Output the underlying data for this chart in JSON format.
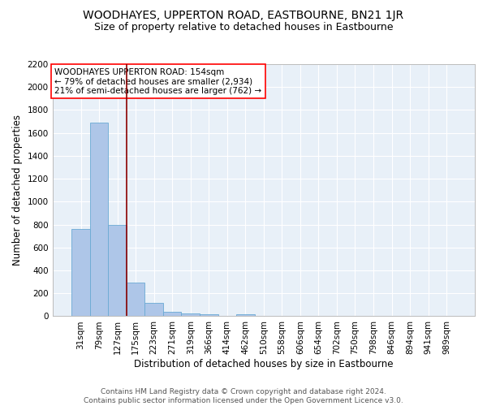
{
  "title": "WOODHAYES, UPPERTON ROAD, EASTBOURNE, BN21 1JR",
  "subtitle": "Size of property relative to detached houses in Eastbourne",
  "xlabel": "Distribution of detached houses by size in Eastbourne",
  "ylabel": "Number of detached properties",
  "footer_line1": "Contains HM Land Registry data © Crown copyright and database right 2024.",
  "footer_line2": "Contains public sector information licensed under the Open Government Licence v3.0.",
  "categories": [
    "31sqm",
    "79sqm",
    "127sqm",
    "175sqm",
    "223sqm",
    "271sqm",
    "319sqm",
    "366sqm",
    "414sqm",
    "462sqm",
    "510sqm",
    "558sqm",
    "606sqm",
    "654sqm",
    "702sqm",
    "750sqm",
    "798sqm",
    "846sqm",
    "894sqm",
    "941sqm",
    "989sqm"
  ],
  "values": [
    760,
    1690,
    800,
    295,
    120,
    42,
    22,
    20,
    0,
    20,
    0,
    0,
    0,
    0,
    0,
    0,
    0,
    0,
    0,
    0,
    0
  ],
  "bar_color": "#aec6e8",
  "bar_edge_color": "#6aaad4",
  "vline_x": 2.5,
  "vline_color": "#8b0000",
  "annotation_text": "WOODHAYES UPPERTON ROAD: 154sqm\n← 79% of detached houses are smaller (2,934)\n21% of semi-detached houses are larger (762) →",
  "annotation_box_color": "white",
  "annotation_box_edge_color": "red",
  "ylim": [
    0,
    2200
  ],
  "yticks": [
    0,
    200,
    400,
    600,
    800,
    1000,
    1200,
    1400,
    1600,
    1800,
    2000,
    2200
  ],
  "background_color": "#e8f0f8",
  "grid_color": "white",
  "title_fontsize": 10,
  "subtitle_fontsize": 9,
  "axis_label_fontsize": 8.5,
  "tick_fontsize": 7.5,
  "annotation_fontsize": 7.5,
  "footer_fontsize": 6.5
}
